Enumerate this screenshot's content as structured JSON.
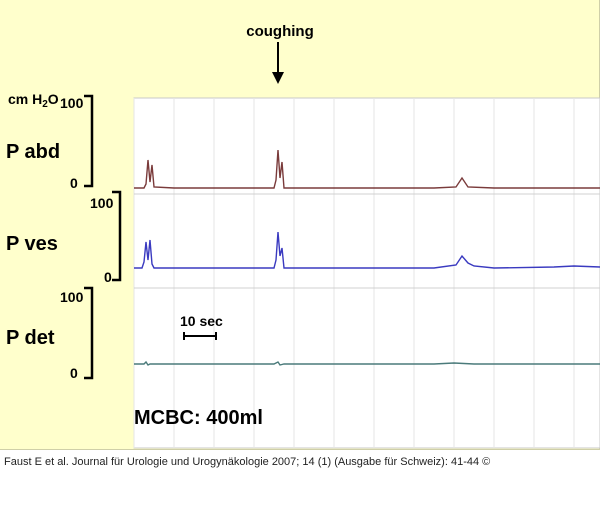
{
  "chart_data": {
    "type": "line",
    "annotation": "coughing",
    "unit_label": "cm H",
    "unit_subscript": "2",
    "unit_tail": "O",
    "scale_bar_label": "10 sec",
    "footer_label": "MCBC: 400ml",
    "series": [
      {
        "name": "P abd",
        "color": "#7a3b3b",
        "ymin_label": "0",
        "ymax_label": "100",
        "points": [
          [
            0,
            2
          ],
          [
            10,
            2
          ],
          [
            12,
            6
          ],
          [
            14,
            30
          ],
          [
            16,
            8
          ],
          [
            18,
            25
          ],
          [
            20,
            3
          ],
          [
            40,
            2
          ],
          [
            80,
            2
          ],
          [
            120,
            2
          ],
          [
            140,
            2
          ],
          [
            142,
            10
          ],
          [
            144,
            40
          ],
          [
            146,
            12
          ],
          [
            148,
            28
          ],
          [
            150,
            2
          ],
          [
            200,
            2
          ],
          [
            260,
            2
          ],
          [
            300,
            2
          ],
          [
            322,
            3
          ],
          [
            328,
            12
          ],
          [
            334,
            3
          ],
          [
            360,
            2
          ],
          [
            400,
            2
          ],
          [
            466,
            2
          ]
        ]
      },
      {
        "name": "P ves",
        "color": "#3a3ac0",
        "ymin_label": "0",
        "ymax_label": "100",
        "points": [
          [
            0,
            2
          ],
          [
            8,
            2
          ],
          [
            10,
            8
          ],
          [
            12,
            28
          ],
          [
            14,
            10
          ],
          [
            16,
            30
          ],
          [
            18,
            6
          ],
          [
            20,
            2
          ],
          [
            60,
            2
          ],
          [
            120,
            2
          ],
          [
            140,
            2
          ],
          [
            142,
            10
          ],
          [
            144,
            38
          ],
          [
            146,
            14
          ],
          [
            148,
            22
          ],
          [
            150,
            2
          ],
          [
            200,
            2
          ],
          [
            260,
            2
          ],
          [
            300,
            2
          ],
          [
            322,
            5
          ],
          [
            328,
            14
          ],
          [
            334,
            7
          ],
          [
            340,
            4
          ],
          [
            360,
            2
          ],
          [
            420,
            3
          ],
          [
            440,
            4
          ],
          [
            466,
            3
          ]
        ]
      },
      {
        "name": "P det",
        "color": "#4a7a7a",
        "ymin_label": "0",
        "ymax_label": "100",
        "points": [
          [
            0,
            2
          ],
          [
            10,
            2
          ],
          [
            12,
            4
          ],
          [
            14,
            1
          ],
          [
            16,
            2
          ],
          [
            60,
            2
          ],
          [
            140,
            2
          ],
          [
            144,
            4
          ],
          [
            146,
            1
          ],
          [
            150,
            2
          ],
          [
            220,
            2
          ],
          [
            300,
            2
          ],
          [
            320,
            3
          ],
          [
            340,
            2
          ],
          [
            400,
            2
          ],
          [
            466,
            2
          ]
        ]
      }
    ]
  },
  "citation": "Faust E et al. Journal für Urologie und Urogynäkologie 2007; 14 (1) (Ausgabe für Schweiz): 41-44 ©"
}
